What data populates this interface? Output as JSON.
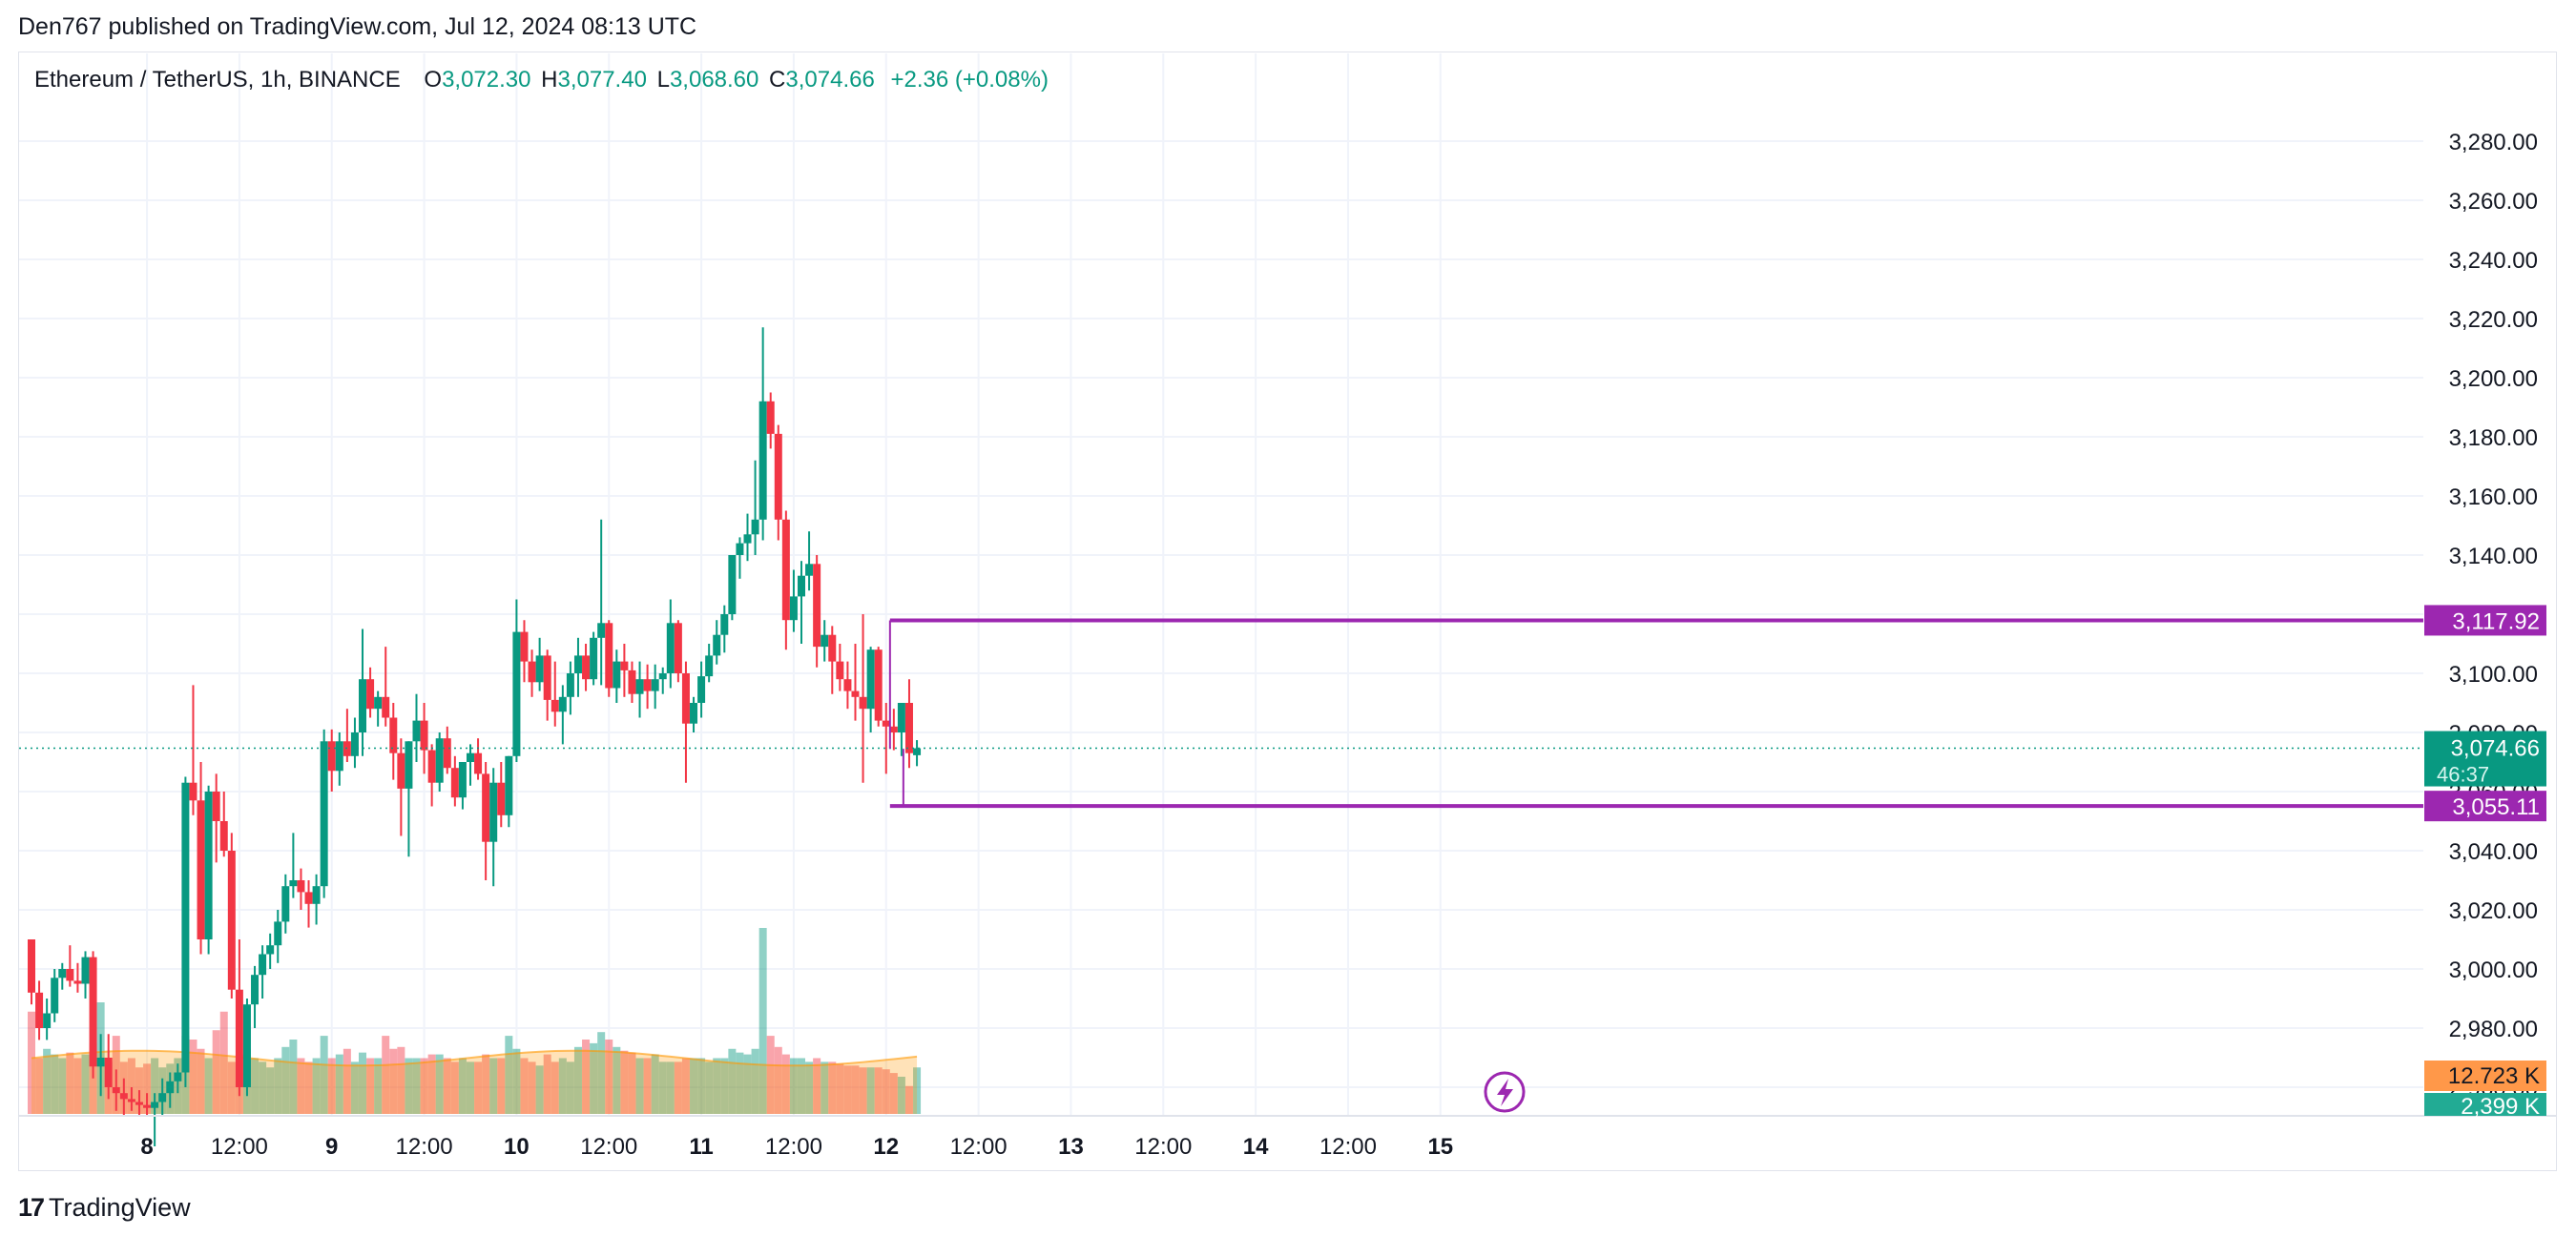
{
  "header": {
    "published_line": "Den767 published on TradingView.com, Jul 12, 2024 08:13 UTC"
  },
  "legend": {
    "symbol": "Ethereum / TetherUS, 1h, BINANCE",
    "o_label": "O",
    "open": "3,072.30",
    "h_label": "H",
    "high": "3,077.40",
    "l_label": "L",
    "low": "3,068.60",
    "c_label": "C",
    "close": "3,074.66",
    "change": "+2.36 (+0.08%)"
  },
  "footer": {
    "logo_mark": "17",
    "brand": "TradingView"
  },
  "colors": {
    "up": "#089981",
    "down": "#f23645",
    "level": "#9c27b0",
    "volume_ma": "#ff9800"
  },
  "chart_data": {
    "type": "candlestick",
    "symbol": "Ethereum / TetherUS",
    "interval": "1h",
    "exchange": "BINANCE",
    "y_ticks": [
      2960,
      2980,
      3000,
      3020,
      3040,
      3060,
      3080,
      3100,
      3120,
      3140,
      3160,
      3180,
      3200,
      3220,
      3240,
      3260,
      3280
    ],
    "y_tick_labels": [
      "2,960.00",
      "2,980.00",
      "3,000.00",
      "3,020.00",
      "3,040.00",
      "3,060.00",
      "3,080.00",
      "3,100.00",
      "3,120.00",
      "3,140.00",
      "3,160.00",
      "3,180.00",
      "3,200.00",
      "3,220.00",
      "3,240.00",
      "3,260.00",
      "3,280.00"
    ],
    "ylim": [
      2944,
      3294
    ],
    "x_ticks": [
      {
        "label": "8",
        "bar": 15,
        "bold": true
      },
      {
        "label": "12:00",
        "bar": 27
      },
      {
        "label": "9",
        "bar": 39,
        "bold": true
      },
      {
        "label": "12:00",
        "bar": 51
      },
      {
        "label": "10",
        "bar": 63,
        "bold": true
      },
      {
        "label": "12:00",
        "bar": 75
      },
      {
        "label": "11",
        "bar": 87,
        "bold": true
      },
      {
        "label": "12:00",
        "bar": 99
      },
      {
        "label": "12",
        "bar": 111,
        "bold": true
      },
      {
        "label": "12:00",
        "bar": 123
      },
      {
        "label": "13",
        "bar": 135,
        "bold": true
      },
      {
        "label": "12:00",
        "bar": 147
      },
      {
        "label": "14",
        "bar": 159,
        "bold": true
      },
      {
        "label": "12:00",
        "bar": 171
      },
      {
        "label": "15",
        "bar": 183,
        "bold": true
      }
    ],
    "x_range_bars": [
      -11.5,
      188.5
    ],
    "candles": [
      [
        3010,
        3010,
        2988,
        2992
      ],
      [
        2992,
        2996,
        2976,
        2980
      ],
      [
        2980,
        2990,
        2976,
        2985
      ],
      [
        2985,
        3000,
        2982,
        2997
      ],
      [
        2997,
        3002,
        2993,
        3000
      ],
      [
        3000,
        3008,
        2994,
        2996
      ],
      [
        2996,
        3002,
        2992,
        2995
      ],
      [
        2995,
        3006,
        2990,
        3004
      ],
      [
        3004,
        3006,
        2963,
        2967
      ],
      [
        2967,
        2978,
        2957,
        2970
      ],
      [
        2970,
        2978,
        2956,
        2960
      ],
      [
        2960,
        2966,
        2952,
        2958
      ],
      [
        2958,
        2963,
        2950,
        2956
      ],
      [
        2956,
        2960,
        2952,
        2955
      ],
      [
        2955,
        2959,
        2950,
        2954
      ],
      [
        2954,
        2958,
        2950,
        2953
      ],
      [
        2953,
        2958,
        2940,
        2955
      ],
      [
        2955,
        2963,
        2950,
        2958
      ],
      [
        2958,
        2965,
        2953,
        2962
      ],
      [
        2962,
        2968,
        2958,
        2965
      ],
      [
        2965,
        3065,
        2960,
        3063
      ],
      [
        3063,
        3096,
        3052,
        3057
      ],
      [
        3057,
        3070,
        3005,
        3010
      ],
      [
        3010,
        3062,
        3005,
        3060
      ],
      [
        3060,
        3066,
        3036,
        3050
      ],
      [
        3050,
        3060,
        3038,
        3040
      ],
      [
        3040,
        3046,
        2990,
        2993
      ],
      [
        2993,
        3010,
        2957,
        2960
      ],
      [
        2960,
        2990,
        2957,
        2988
      ],
      [
        2988,
        3001,
        2980,
        2998
      ],
      [
        2998,
        3008,
        2990,
        3005
      ],
      [
        3005,
        3012,
        3000,
        3008
      ],
      [
        3008,
        3020,
        3002,
        3016
      ],
      [
        3016,
        3032,
        3012,
        3028
      ],
      [
        3028,
        3046,
        3024,
        3030
      ],
      [
        3030,
        3034,
        3020,
        3026
      ],
      [
        3026,
        3030,
        3014,
        3022
      ],
      [
        3022,
        3032,
        3015,
        3028
      ],
      [
        3028,
        3081,
        3024,
        3077
      ],
      [
        3077,
        3081,
        3060,
        3067
      ],
      [
        3067,
        3080,
        3062,
        3077
      ],
      [
        3077,
        3088,
        3070,
        3072
      ],
      [
        3072,
        3085,
        3068,
        3080
      ],
      [
        3080,
        3115,
        3072,
        3098
      ],
      [
        3098,
        3102,
        3085,
        3088
      ],
      [
        3088,
        3094,
        3082,
        3092
      ],
      [
        3092,
        3109,
        3082,
        3085
      ],
      [
        3085,
        3090,
        3064,
        3073
      ],
      [
        3073,
        3078,
        3045,
        3061
      ],
      [
        3061,
        3077,
        3038,
        3077
      ],
      [
        3077,
        3093,
        3070,
        3084
      ],
      [
        3084,
        3090,
        3066,
        3074
      ],
      [
        3074,
        3076,
        3055,
        3063
      ],
      [
        3063,
        3080,
        3060,
        3078
      ],
      [
        3078,
        3082,
        3066,
        3068
      ],
      [
        3068,
        3072,
        3055,
        3058
      ],
      [
        3058,
        3070,
        3054,
        3070
      ],
      [
        3070,
        3076,
        3062,
        3073
      ],
      [
        3073,
        3078,
        3064,
        3066
      ],
      [
        3066,
        3070,
        3030,
        3043
      ],
      [
        3043,
        3068,
        3028,
        3063
      ],
      [
        3063,
        3070,
        3048,
        3052
      ],
      [
        3052,
        3072,
        3048,
        3072
      ],
      [
        3072,
        3125,
        3070,
        3114
      ],
      [
        3114,
        3118,
        3097,
        3104
      ],
      [
        3104,
        3108,
        3092,
        3097
      ],
      [
        3097,
        3112,
        3094,
        3106
      ],
      [
        3106,
        3108,
        3084,
        3091
      ],
      [
        3091,
        3104,
        3082,
        3087
      ],
      [
        3087,
        3096,
        3076,
        3092
      ],
      [
        3092,
        3104,
        3086,
        3100
      ],
      [
        3100,
        3112,
        3092,
        3106
      ],
      [
        3106,
        3110,
        3094,
        3098
      ],
      [
        3098,
        3114,
        3096,
        3112
      ],
      [
        3112,
        3152,
        3096,
        3117
      ],
      [
        3117,
        3118,
        3092,
        3095
      ],
      [
        3095,
        3108,
        3090,
        3104
      ],
      [
        3104,
        3110,
        3092,
        3101
      ],
      [
        3101,
        3104,
        3090,
        3093
      ],
      [
        3093,
        3104,
        3085,
        3098
      ],
      [
        3098,
        3103,
        3088,
        3094
      ],
      [
        3094,
        3103,
        3088,
        3098
      ],
      [
        3098,
        3102,
        3093,
        3100
      ],
      [
        3100,
        3125,
        3095,
        3117
      ],
      [
        3117,
        3118,
        3097,
        3100
      ],
      [
        3100,
        3104,
        3063,
        3083
      ],
      [
        3083,
        3092,
        3080,
        3090
      ],
      [
        3090,
        3104,
        3085,
        3099
      ],
      [
        3099,
        3110,
        3097,
        3106
      ],
      [
        3106,
        3118,
        3103,
        3113
      ],
      [
        3113,
        3123,
        3107,
        3120
      ],
      [
        3120,
        3140,
        3118,
        3140
      ],
      [
        3140,
        3146,
        3132,
        3144
      ],
      [
        3144,
        3154,
        3138,
        3147
      ],
      [
        3147,
        3172,
        3140,
        3152
      ],
      [
        3152,
        3217,
        3145,
        3192
      ],
      [
        3192,
        3195,
        3176,
        3181
      ],
      [
        3181,
        3184,
        3145,
        3152
      ],
      [
        3152,
        3155,
        3108,
        3118
      ],
      [
        3118,
        3135,
        3114,
        3126
      ],
      [
        3126,
        3138,
        3110,
        3133
      ],
      [
        3133,
        3148,
        3128,
        3137
      ],
      [
        3137,
        3140,
        3102,
        3109
      ],
      [
        3109,
        3118,
        3104,
        3113
      ],
      [
        3113,
        3116,
        3093,
        3104
      ],
      [
        3104,
        3110,
        3094,
        3098
      ],
      [
        3098,
        3104,
        3088,
        3094
      ],
      [
        3094,
        3110,
        3084,
        3092
      ],
      [
        3092,
        3120,
        3063,
        3088
      ],
      [
        3088,
        3109,
        3080,
        3108
      ],
      [
        3108,
        3109,
        3082,
        3084
      ],
      [
        3084,
        3090,
        3066,
        3082
      ],
      [
        3082,
        3088,
        3074,
        3080
      ],
      [
        3080,
        3090,
        3072,
        3090
      ],
      [
        3090,
        3098,
        3068,
        3073
      ],
      [
        3072.3,
        3077.4,
        3068.6,
        3074.66
      ]
    ],
    "volume_bars_note": "volume shown as bars; ratios relative to max",
    "volumes": [
      0.55,
      0.3,
      0.35,
      0.32,
      0.3,
      0.33,
      0.3,
      0.32,
      0.38,
      0.6,
      0.28,
      0.42,
      0.28,
      0.3,
      0.25,
      0.27,
      0.3,
      0.25,
      0.27,
      0.3,
      0.42,
      0.4,
      0.35,
      0.3,
      0.45,
      0.55,
      0.28,
      0.32,
      0.35,
      0.3,
      0.28,
      0.25,
      0.3,
      0.36,
      0.4,
      0.3,
      0.28,
      0.3,
      0.42,
      0.3,
      0.32,
      0.35,
      0.28,
      0.33,
      0.3,
      0.3,
      0.42,
      0.35,
      0.36,
      0.3,
      0.3,
      0.3,
      0.32,
      0.32,
      0.3,
      0.28,
      0.3,
      0.28,
      0.28,
      0.32,
      0.3,
      0.3,
      0.42,
      0.35,
      0.3,
      0.28,
      0.26,
      0.32,
      0.28,
      0.3,
      0.28,
      0.36,
      0.4,
      0.38,
      0.44,
      0.4,
      0.36,
      0.34,
      0.33,
      0.3,
      0.3,
      0.32,
      0.28,
      0.28,
      0.28,
      0.3,
      0.3,
      0.3,
      0.28,
      0.3,
      0.3,
      0.35,
      0.33,
      0.32,
      0.35,
      1.0,
      0.42,
      0.36,
      0.32,
      0.3,
      0.3,
      0.28,
      0.3,
      0.28,
      0.28,
      0.27,
      0.26,
      0.26,
      0.25,
      0.25,
      0.25,
      0.24,
      0.22,
      0.2,
      0.15
    ],
    "volume_max_label": "12.723 K",
    "volume_current_label": "2,399 K",
    "levels": [
      {
        "value": 3117.92,
        "label": "3,117.92",
        "start_bar": 112
      },
      {
        "value": 3055.11,
        "label": "3,055.11",
        "start_bar": 112
      }
    ],
    "current_price": {
      "value": 3074.66,
      "label": "3,074.66",
      "countdown": "46:37"
    },
    "grid": true
  }
}
